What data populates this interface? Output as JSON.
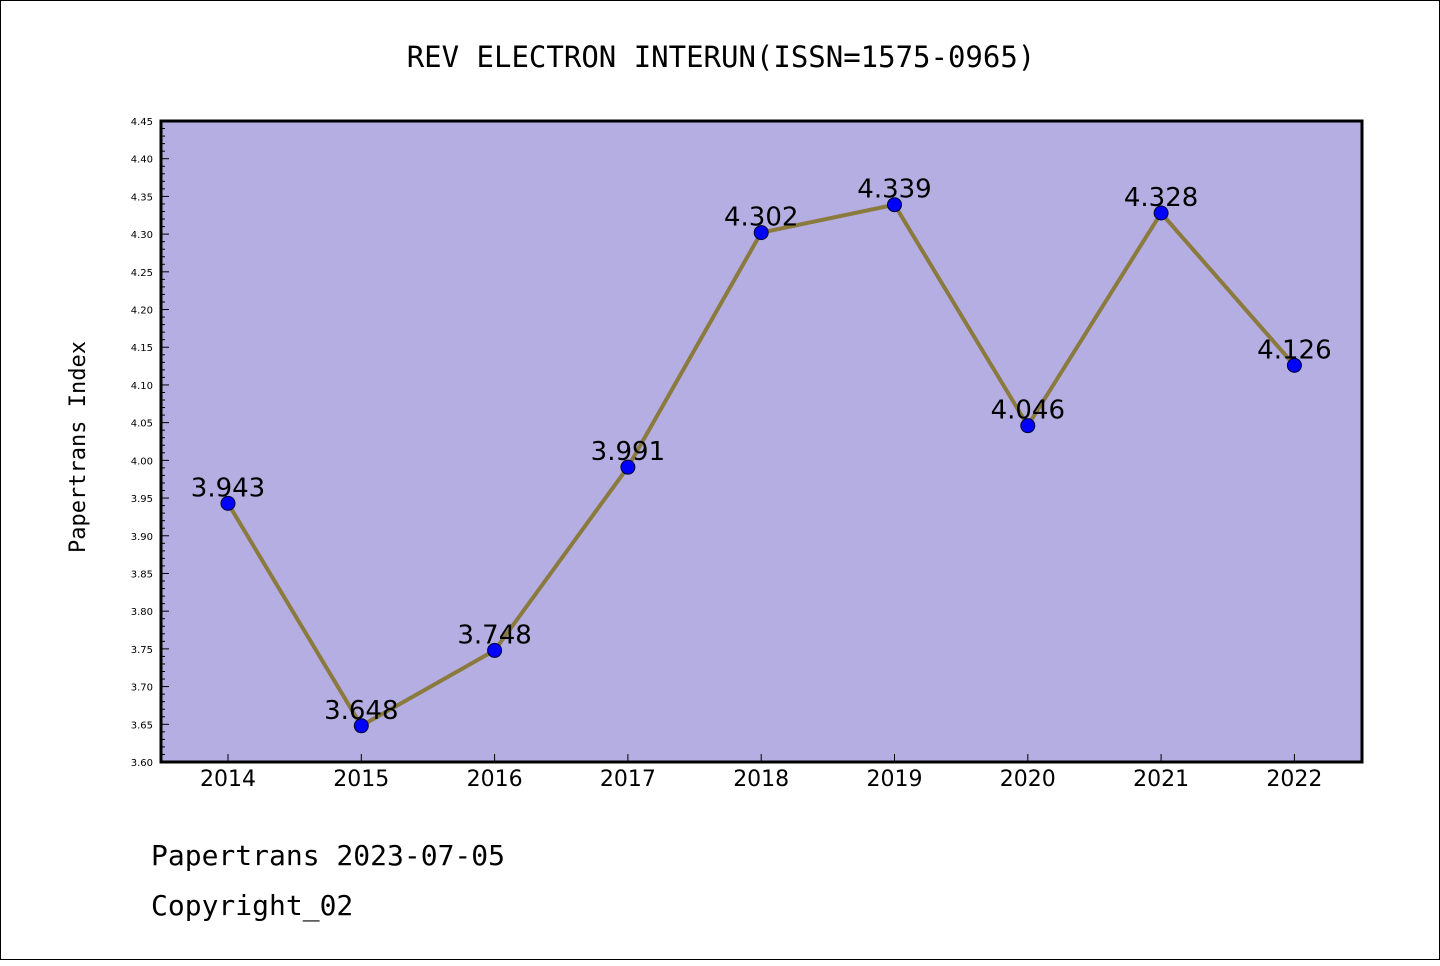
{
  "footer": {
    "line1": "Papertrans 2023-07-05",
    "line2": "Copyright_02"
  },
  "colors": {
    "plot_background": "#b5aee2",
    "line": "#8b7a3e",
    "marker": "#0000ff",
    "border": "#000000"
  },
  "chart_data": {
    "type": "line",
    "title": "REV ELECTRON INTERUN(ISSN=1575-0965)",
    "xlabel": "",
    "ylabel": "Papertrans Index",
    "categories": [
      "2014",
      "2015",
      "2016",
      "2017",
      "2018",
      "2019",
      "2020",
      "2021",
      "2022"
    ],
    "series": [
      {
        "values": [
          3.943,
          3.648,
          3.748,
          3.991,
          4.302,
          4.339,
          4.046,
          4.328,
          4.126
        ],
        "labels": [
          "3.943",
          "3.648",
          "3.748",
          "3.991",
          "4.302",
          "4.339",
          "4.046",
          "4.328",
          "4.126"
        ]
      }
    ],
    "ylim": [
      3.6,
      4.45
    ],
    "yticks": [
      "3.60",
      "3.65",
      "3.70",
      "3.75",
      "3.80",
      "3.85",
      "3.90",
      "3.95",
      "4.00",
      "4.05",
      "4.10",
      "4.15",
      "4.20",
      "4.25",
      "4.30",
      "4.35",
      "4.40",
      "4.45"
    ],
    "grid": false,
    "legend": "none"
  }
}
